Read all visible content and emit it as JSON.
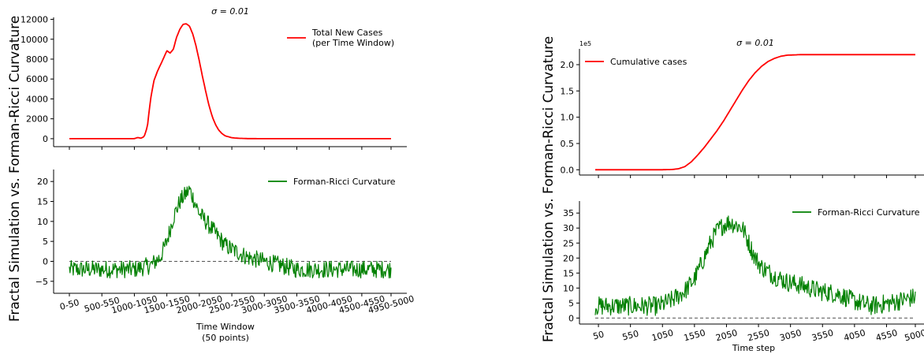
{
  "colors": {
    "cases": "#ff0000",
    "curvature": "#008000",
    "zero_line": "#555555",
    "axis": "#000000"
  },
  "figures": {
    "left": {
      "ylabel": "Fractal Simulation vs. Forman-Ricci Curvature",
      "xlabel_line1": "Time Window",
      "xlabel_line2": "(50 points)"
    },
    "right": {
      "ylabel": "Fractal Simulation vs. Forman-Ricci Curvature",
      "xlabel": "Time step"
    }
  },
  "chart_data": [
    {
      "id": "left-top",
      "type": "line",
      "title": "σ = 0.01",
      "ylim": [
        -800,
        12200
      ],
      "yticks": [
        0,
        2000,
        4000,
        6000,
        8000,
        10000,
        12000
      ],
      "ytick_labels": [
        "0",
        "2000",
        "4000",
        "6000",
        "8000",
        "10000",
        "12000"
      ],
      "legend_position": "top-right",
      "series": [
        {
          "name": "Total New Cases\n (per Time Window)",
          "legend_line1": "Total New Cases",
          "legend_line2": " (per Time Window)",
          "x": [
            0,
            20,
            21,
            22,
            23,
            24,
            25,
            26,
            27,
            28,
            29,
            30,
            31,
            32,
            33,
            34,
            35,
            36,
            37,
            38,
            39,
            40,
            41,
            42,
            43,
            44,
            45,
            46,
            47,
            48,
            50,
            52,
            55,
            60,
            70,
            80,
            99
          ],
          "y": [
            0,
            0,
            120,
            50,
            200,
            1200,
            4000,
            5800,
            6700,
            7400,
            8100,
            8850,
            8600,
            9000,
            10200,
            11000,
            11500,
            11550,
            11300,
            10500,
            9300,
            7800,
            6200,
            4700,
            3300,
            2200,
            1400,
            850,
            500,
            280,
            100,
            40,
            10,
            0,
            0,
            0,
            0
          ]
        }
      ]
    },
    {
      "id": "left-bottom",
      "type": "line",
      "ylim": [
        -8,
        23
      ],
      "yticks": [
        -5,
        0,
        5,
        10,
        15,
        20
      ],
      "ytick_labels": [
        "−5",
        "0",
        "5",
        "10",
        "15",
        "20"
      ],
      "xlim": [
        0,
        99
      ],
      "xtick_positions": [
        0,
        10,
        20,
        30,
        40,
        50,
        60,
        70,
        80,
        90,
        99
      ],
      "categories": [
        "0-50",
        "500-550",
        "1000-1050",
        "1500-1550",
        "2000-2050",
        "2500-2550",
        "3000-3050",
        "3500-3550",
        "4000-4050",
        "4500-4550",
        "4950-5000"
      ],
      "reference_line": 0,
      "legend_position": "top-right",
      "series": [
        {
          "name": "Forman-Ricci Curvature",
          "x": [
            0,
            10,
            20,
            25,
            28,
            30,
            32,
            34,
            36,
            37,
            38,
            40,
            42,
            45,
            48,
            50,
            55,
            60,
            70,
            80,
            90,
            99
          ],
          "y": [
            -2,
            -2,
            -2,
            -1,
            1,
            5,
            11,
            15,
            17,
            18,
            16,
            12,
            10,
            7,
            4,
            3,
            1,
            0,
            -2,
            -2,
            -2,
            -2
          ],
          "noise_amplitude": 2.2
        }
      ]
    },
    {
      "id": "right-top",
      "type": "line",
      "title": "σ = 0.01",
      "scale_label": "1e5",
      "ylim": [
        -10000,
        230000
      ],
      "yticks": [
        0,
        50000,
        100000,
        150000,
        200000
      ],
      "ytick_labels": [
        "0.0",
        "0.5",
        "1.0",
        "1.5",
        "2.0"
      ],
      "xlim": [
        0,
        5000
      ],
      "legend_position": "top-left",
      "series": [
        {
          "name": "Cumulative cases",
          "x": [
            0,
            1000,
            1200,
            1300,
            1400,
            1500,
            1600,
            1700,
            1800,
            1900,
            2000,
            2100,
            2200,
            2300,
            2400,
            2500,
            2600,
            2700,
            2800,
            2900,
            3000,
            3200,
            5000
          ],
          "y": [
            0,
            0,
            500,
            2000,
            6000,
            15000,
            28000,
            42000,
            58000,
            74000,
            92000,
            112000,
            132000,
            152000,
            170000,
            185000,
            197000,
            206000,
            212000,
            216000,
            218000,
            219000,
            219000
          ]
        }
      ]
    },
    {
      "id": "right-bottom",
      "type": "line",
      "ylim": [
        -2,
        39
      ],
      "yticks": [
        0,
        5,
        10,
        15,
        20,
        25,
        30,
        35
      ],
      "ytick_labels": [
        "0",
        "5",
        "10",
        "15",
        "20",
        "25",
        "30",
        "35"
      ],
      "xlim": [
        0,
        5000
      ],
      "xtick_values": [
        50,
        550,
        1050,
        1550,
        2050,
        2550,
        3050,
        3550,
        4050,
        4550,
        5000
      ],
      "xtick_labels": [
        "50",
        "550",
        "1050",
        "1550",
        "2050",
        "2550",
        "3050",
        "3550",
        "4050",
        "4550",
        "5000"
      ],
      "reference_line": 0,
      "legend_position": "top-right",
      "series": [
        {
          "name": "Forman-Ricci Curvature",
          "x": [
            0,
            500,
            1000,
            1200,
            1400,
            1550,
            1700,
            1800,
            1900,
            2000,
            2100,
            2200,
            2300,
            2400,
            2500,
            2600,
            2800,
            3000,
            3200,
            3500,
            3800,
            4000,
            4300,
            4600,
            4800,
            5000
          ],
          "y": [
            4,
            4,
            4,
            6,
            9,
            13,
            20,
            25,
            29,
            31,
            32,
            31,
            30,
            25,
            20,
            17,
            14,
            12,
            11,
            9,
            8,
            6,
            4,
            5,
            6,
            7
          ],
          "noise_amplitude": 3.2
        }
      ]
    }
  ]
}
